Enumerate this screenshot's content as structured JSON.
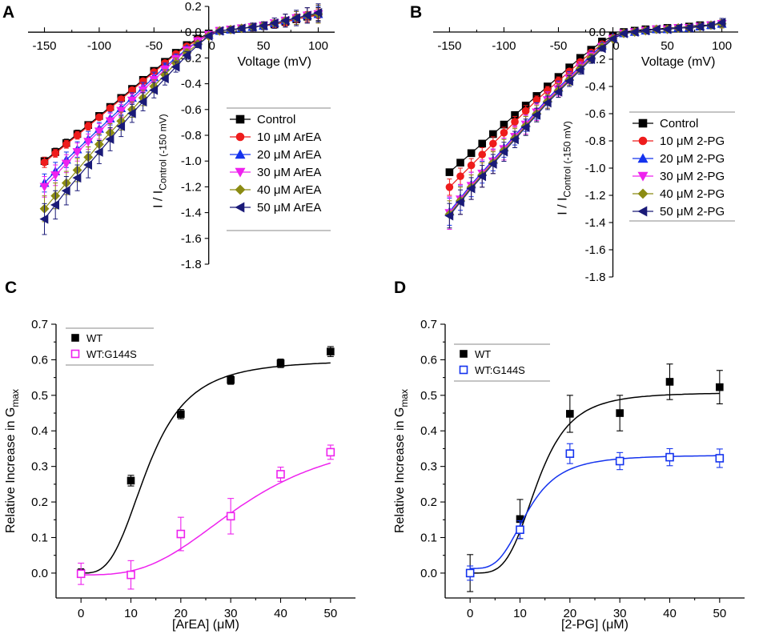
{
  "chart_data": [
    {
      "panel": "A",
      "type": "line",
      "xlabel": "Voltage (mV)",
      "ylabel_main": "I / I",
      "ylabel_sub": "Control (-150 mV)",
      "xlim": [
        -165,
        115
      ],
      "ylim": [
        -1.8,
        0.2
      ],
      "xticks": [
        -150,
        -100,
        -50,
        0,
        50,
        100
      ],
      "yticks": [
        0.2,
        0.0,
        -0.2,
        -0.4,
        -0.6,
        -0.8,
        -1.0,
        -1.2,
        -1.4,
        -1.6,
        -1.8
      ],
      "x": [
        -150,
        -140,
        -130,
        -120,
        -110,
        -100,
        -90,
        -80,
        -70,
        -60,
        -50,
        -40,
        -30,
        -20,
        -10,
        0,
        10,
        20,
        30,
        40,
        50,
        60,
        70,
        80,
        90,
        100
      ],
      "series": [
        {
          "name": "Control",
          "color": "#000000",
          "marker": "square",
          "values": [
            -1.0,
            -0.93,
            -0.86,
            -0.79,
            -0.72,
            -0.65,
            -0.58,
            -0.51,
            -0.44,
            -0.37,
            -0.3,
            -0.23,
            -0.16,
            -0.1,
            -0.05,
            -0.01,
            0.01,
            0.02,
            0.03,
            0.04,
            0.05,
            0.06,
            0.08,
            0.1,
            0.12,
            0.14
          ],
          "errors": [
            0.03,
            0.03,
            0.03,
            0.03,
            0.02,
            0.02,
            0.02,
            0.02,
            0.02,
            0.02,
            0.02,
            0.02,
            0.01,
            0.01,
            0.01,
            0.01,
            0.01,
            0.01,
            0.02,
            0.02,
            0.02,
            0.03,
            0.03,
            0.04,
            0.04,
            0.05
          ]
        },
        {
          "name": "10 μM ArEA",
          "color": "#ee1c1c",
          "marker": "circle",
          "values": [
            -1.01,
            -0.94,
            -0.87,
            -0.8,
            -0.73,
            -0.66,
            -0.59,
            -0.52,
            -0.45,
            -0.38,
            -0.31,
            -0.24,
            -0.17,
            -0.11,
            -0.06,
            -0.02,
            0.01,
            0.02,
            0.03,
            0.04,
            0.05,
            0.06,
            0.08,
            0.1,
            0.12,
            0.13
          ],
          "errors": [
            0.04,
            0.03,
            0.03,
            0.03,
            0.03,
            0.02,
            0.02,
            0.02,
            0.02,
            0.02,
            0.02,
            0.02,
            0.01,
            0.01,
            0.01,
            0.01,
            0.01,
            0.01,
            0.02,
            0.02,
            0.02,
            0.03,
            0.03,
            0.04,
            0.04,
            0.05
          ]
        },
        {
          "name": "20 μM ArEA",
          "color": "#1433ee",
          "marker": "triangle-up",
          "values": [
            -1.17,
            -1.08,
            -0.99,
            -0.91,
            -0.83,
            -0.75,
            -0.67,
            -0.59,
            -0.51,
            -0.43,
            -0.35,
            -0.27,
            -0.2,
            -0.13,
            -0.07,
            -0.02,
            0.01,
            0.02,
            0.03,
            0.04,
            0.05,
            0.07,
            0.09,
            0.11,
            0.13,
            0.14
          ],
          "errors": [
            0.07,
            0.07,
            0.06,
            0.06,
            0.06,
            0.05,
            0.05,
            0.05,
            0.04,
            0.04,
            0.04,
            0.03,
            0.03,
            0.02,
            0.02,
            0.01,
            0.01,
            0.02,
            0.02,
            0.03,
            0.03,
            0.04,
            0.05,
            0.05,
            0.06,
            0.06
          ]
        },
        {
          "name": "30 μM ArEA",
          "color": "#ee22ee",
          "marker": "triangle-down",
          "values": [
            -1.2,
            -1.11,
            -1.02,
            -0.93,
            -0.85,
            -0.77,
            -0.69,
            -0.61,
            -0.53,
            -0.45,
            -0.37,
            -0.29,
            -0.21,
            -0.14,
            -0.07,
            -0.02,
            0.01,
            0.02,
            0.03,
            0.04,
            0.05,
            0.07,
            0.09,
            0.11,
            0.13,
            0.14
          ],
          "errors": [
            0.08,
            0.08,
            0.07,
            0.07,
            0.06,
            0.06,
            0.06,
            0.05,
            0.05,
            0.04,
            0.04,
            0.03,
            0.03,
            0.02,
            0.02,
            0.01,
            0.01,
            0.02,
            0.02,
            0.03,
            0.03,
            0.04,
            0.05,
            0.05,
            0.06,
            0.07
          ]
        },
        {
          "name": "40 μM ArEA",
          "color": "#8b8b12",
          "marker": "diamond",
          "values": [
            -1.37,
            -1.27,
            -1.17,
            -1.07,
            -0.97,
            -0.87,
            -0.78,
            -0.69,
            -0.6,
            -0.51,
            -0.42,
            -0.33,
            -0.24,
            -0.16,
            -0.09,
            -0.03,
            0.01,
            0.02,
            0.03,
            0.04,
            0.05,
            0.07,
            0.09,
            0.11,
            0.13,
            0.14
          ],
          "errors": [
            0.1,
            0.1,
            0.09,
            0.09,
            0.08,
            0.08,
            0.07,
            0.07,
            0.06,
            0.06,
            0.05,
            0.04,
            0.04,
            0.03,
            0.02,
            0.01,
            0.01,
            0.02,
            0.02,
            0.03,
            0.03,
            0.04,
            0.05,
            0.05,
            0.06,
            0.07
          ]
        },
        {
          "name": "50 μM ArEA",
          "color": "#1a1a78",
          "marker": "triangle-left",
          "values": [
            -1.45,
            -1.34,
            -1.23,
            -1.13,
            -1.03,
            -0.93,
            -0.83,
            -0.73,
            -0.63,
            -0.54,
            -0.45,
            -0.36,
            -0.27,
            -0.18,
            -0.1,
            -0.03,
            0.01,
            0.02,
            0.03,
            0.04,
            0.05,
            0.07,
            0.09,
            0.11,
            0.13,
            0.15
          ],
          "errors": [
            0.12,
            0.11,
            0.11,
            0.1,
            0.1,
            0.09,
            0.09,
            0.08,
            0.07,
            0.07,
            0.06,
            0.05,
            0.04,
            0.03,
            0.02,
            0.01,
            0.01,
            0.02,
            0.02,
            0.03,
            0.03,
            0.04,
            0.05,
            0.06,
            0.06,
            0.07
          ]
        }
      ]
    },
    {
      "panel": "B",
      "type": "line",
      "xlabel": "Voltage (mV)",
      "ylabel_main": "I / I",
      "ylabel_sub": "Control (-150 mV)",
      "xlim": [
        -165,
        115
      ],
      "ylim": [
        -1.8,
        0.0
      ],
      "xticks": [
        -150,
        -100,
        -50,
        0,
        50,
        100
      ],
      "yticks": [
        0.0,
        -0.2,
        -0.4,
        -0.6,
        -0.8,
        -1.0,
        -1.2,
        -1.4,
        -1.6,
        -1.8
      ],
      "x": [
        -150,
        -140,
        -130,
        -120,
        -110,
        -100,
        -90,
        -80,
        -70,
        -60,
        -50,
        -40,
        -30,
        -20,
        -10,
        0,
        10,
        20,
        30,
        40,
        50,
        60,
        70,
        80,
        90,
        100
      ],
      "series": [
        {
          "name": "Control",
          "color": "#000000",
          "marker": "square",
          "values": [
            -1.03,
            -0.96,
            -0.89,
            -0.82,
            -0.75,
            -0.68,
            -0.61,
            -0.54,
            -0.47,
            -0.4,
            -0.33,
            -0.26,
            -0.19,
            -0.13,
            -0.07,
            -0.03,
            0.0,
            0.01,
            0.02,
            0.02,
            0.03,
            0.03,
            0.04,
            0.05,
            0.05,
            0.06
          ],
          "errors": [
            0.02,
            0.02,
            0.02,
            0.02,
            0.02,
            0.02,
            0.02,
            0.02,
            0.02,
            0.02,
            0.01,
            0.01,
            0.01,
            0.01,
            0.01,
            0.01,
            0.01,
            0.01,
            0.01,
            0.01,
            0.01,
            0.01,
            0.01,
            0.02,
            0.02,
            0.02
          ]
        },
        {
          "name": "10 μM 2-PG",
          "color": "#ee1c1c",
          "marker": "circle",
          "values": [
            -1.14,
            -1.06,
            -0.98,
            -0.9,
            -0.82,
            -0.74,
            -0.66,
            -0.58,
            -0.5,
            -0.43,
            -0.36,
            -0.29,
            -0.22,
            -0.15,
            -0.09,
            -0.04,
            -0.01,
            0.0,
            0.01,
            0.02,
            0.02,
            0.03,
            0.03,
            0.04,
            0.05,
            0.06
          ],
          "errors": [
            0.06,
            0.06,
            0.05,
            0.05,
            0.05,
            0.04,
            0.04,
            0.04,
            0.03,
            0.03,
            0.03,
            0.02,
            0.02,
            0.02,
            0.01,
            0.01,
            0.01,
            0.01,
            0.01,
            0.01,
            0.01,
            0.02,
            0.02,
            0.02,
            0.02,
            0.02
          ]
        },
        {
          "name": "20 μM 2-PG",
          "color": "#1433ee",
          "marker": "triangle-up",
          "values": [
            -1.32,
            -1.22,
            -1.12,
            -1.03,
            -0.94,
            -0.85,
            -0.76,
            -0.67,
            -0.58,
            -0.49,
            -0.41,
            -0.33,
            -0.25,
            -0.17,
            -0.1,
            -0.04,
            -0.01,
            0.0,
            0.01,
            0.02,
            0.02,
            0.03,
            0.03,
            0.04,
            0.05,
            0.06
          ],
          "errors": [
            0.1,
            0.09,
            0.09,
            0.08,
            0.08,
            0.07,
            0.07,
            0.06,
            0.06,
            0.05,
            0.05,
            0.04,
            0.03,
            0.03,
            0.02,
            0.01,
            0.01,
            0.01,
            0.01,
            0.01,
            0.01,
            0.02,
            0.02,
            0.02,
            0.02,
            0.03
          ]
        },
        {
          "name": "30 μM 2-PG",
          "color": "#ee22ee",
          "marker": "triangle-down",
          "values": [
            -1.33,
            -1.23,
            -1.13,
            -1.04,
            -0.95,
            -0.86,
            -0.77,
            -0.68,
            -0.59,
            -0.5,
            -0.42,
            -0.34,
            -0.26,
            -0.18,
            -0.11,
            -0.05,
            -0.01,
            0.0,
            0.01,
            0.02,
            0.02,
            0.03,
            0.03,
            0.04,
            0.05,
            0.06
          ],
          "errors": [
            0.12,
            0.11,
            0.1,
            0.1,
            0.09,
            0.08,
            0.08,
            0.07,
            0.06,
            0.06,
            0.05,
            0.04,
            0.04,
            0.03,
            0.02,
            0.01,
            0.01,
            0.01,
            0.01,
            0.01,
            0.01,
            0.02,
            0.02,
            0.02,
            0.02,
            0.03
          ]
        },
        {
          "name": "40 μM 2-PG",
          "color": "#8b8b12",
          "marker": "diamond",
          "values": [
            -1.34,
            -1.24,
            -1.14,
            -1.05,
            -0.96,
            -0.87,
            -0.78,
            -0.69,
            -0.6,
            -0.51,
            -0.43,
            -0.35,
            -0.27,
            -0.19,
            -0.11,
            -0.05,
            -0.01,
            0.0,
            0.01,
            0.02,
            0.02,
            0.03,
            0.03,
            0.04,
            0.05,
            0.06
          ],
          "errors": [
            0.1,
            0.1,
            0.09,
            0.09,
            0.08,
            0.08,
            0.07,
            0.07,
            0.06,
            0.05,
            0.05,
            0.04,
            0.03,
            0.03,
            0.02,
            0.01,
            0.01,
            0.01,
            0.01,
            0.01,
            0.01,
            0.02,
            0.02,
            0.02,
            0.02,
            0.03
          ]
        },
        {
          "name": "50 μM 2-PG",
          "color": "#1a1a78",
          "marker": "triangle-left",
          "values": [
            -1.35,
            -1.25,
            -1.15,
            -1.06,
            -0.97,
            -0.88,
            -0.79,
            -0.7,
            -0.61,
            -0.52,
            -0.44,
            -0.36,
            -0.28,
            -0.2,
            -0.12,
            -0.05,
            -0.01,
            0.0,
            0.01,
            0.02,
            0.02,
            0.03,
            0.03,
            0.04,
            0.05,
            0.07
          ],
          "errors": [
            0.09,
            0.09,
            0.08,
            0.08,
            0.07,
            0.07,
            0.06,
            0.06,
            0.05,
            0.05,
            0.04,
            0.04,
            0.03,
            0.03,
            0.02,
            0.01,
            0.01,
            0.01,
            0.01,
            0.01,
            0.01,
            0.02,
            0.02,
            0.02,
            0.02,
            0.03
          ]
        }
      ]
    },
    {
      "panel": "C",
      "type": "scatter",
      "xlabel_pre": "[ArEA] (",
      "xlabel_unit": "μM",
      "xlabel_post": ")",
      "ylabel_main": "Relative Increase in G",
      "ylabel_sub": "max",
      "xlim": [
        -5,
        55
      ],
      "ylim": [
        -0.07,
        0.7
      ],
      "xticks": [
        0,
        10,
        20,
        30,
        40,
        50
      ],
      "yticks": [
        0.0,
        0.1,
        0.2,
        0.3,
        0.4,
        0.5,
        0.6,
        0.7
      ],
      "x": [
        0,
        10,
        20,
        30,
        40,
        50
      ],
      "series": [
        {
          "name": "WT",
          "color": "#000000",
          "marker": "square",
          "filled": true,
          "values": [
            0.0,
            0.26,
            0.447,
            0.543,
            0.59,
            0.623
          ],
          "errors": [
            0.012,
            0.015,
            0.013,
            0.012,
            0.012,
            0.014
          ],
          "fit": {
            "top": 0.6,
            "ec50": 13.5,
            "hill": 3.2
          }
        },
        {
          "name": "WT:G144S",
          "color": "#ee22ee",
          "marker": "square",
          "filled": false,
          "values": [
            -0.002,
            -0.005,
            0.11,
            0.16,
            0.278,
            0.34
          ],
          "errors": [
            0.03,
            0.04,
            0.047,
            0.05,
            0.02,
            0.02
          ],
          "fit": {
            "top": 0.4,
            "ec50": 33,
            "hill": 3.0,
            "bottom": -0.005
          }
        }
      ]
    },
    {
      "panel": "D",
      "type": "scatter",
      "xlabel_pre": "[2-PG] (",
      "xlabel_unit": "μM",
      "xlabel_post": ")",
      "ylabel_main": "Relative Increase in G",
      "ylabel_sub": "max",
      "xlim": [
        -5,
        55
      ],
      "ylim": [
        -0.07,
        0.7
      ],
      "xticks": [
        0,
        10,
        20,
        30,
        40,
        50
      ],
      "yticks": [
        0.0,
        0.1,
        0.2,
        0.3,
        0.4,
        0.5,
        0.6,
        0.7
      ],
      "x": [
        0,
        10,
        20,
        30,
        40,
        50
      ],
      "series": [
        {
          "name": "WT",
          "color": "#000000",
          "marker": "square",
          "filled": true,
          "values": [
            0.0,
            0.152,
            0.448,
            0.45,
            0.538,
            0.523
          ],
          "errors": [
            0.052,
            0.055,
            0.052,
            0.05,
            0.05,
            0.047
          ],
          "fit": {
            "top": 0.508,
            "ec50": 13.5,
            "hill": 4.0
          }
        },
        {
          "name": "WT:G144S",
          "color": "#1433ee",
          "marker": "square",
          "filled": false,
          "values": [
            0.0,
            0.122,
            0.336,
            0.315,
            0.326,
            0.323
          ],
          "errors": [
            0.02,
            0.025,
            0.028,
            0.024,
            0.024,
            0.026
          ],
          "fit": {
            "top": 0.332,
            "ec50": 11.5,
            "hill": 3.5,
            "bottom": 0.013
          }
        }
      ]
    }
  ]
}
